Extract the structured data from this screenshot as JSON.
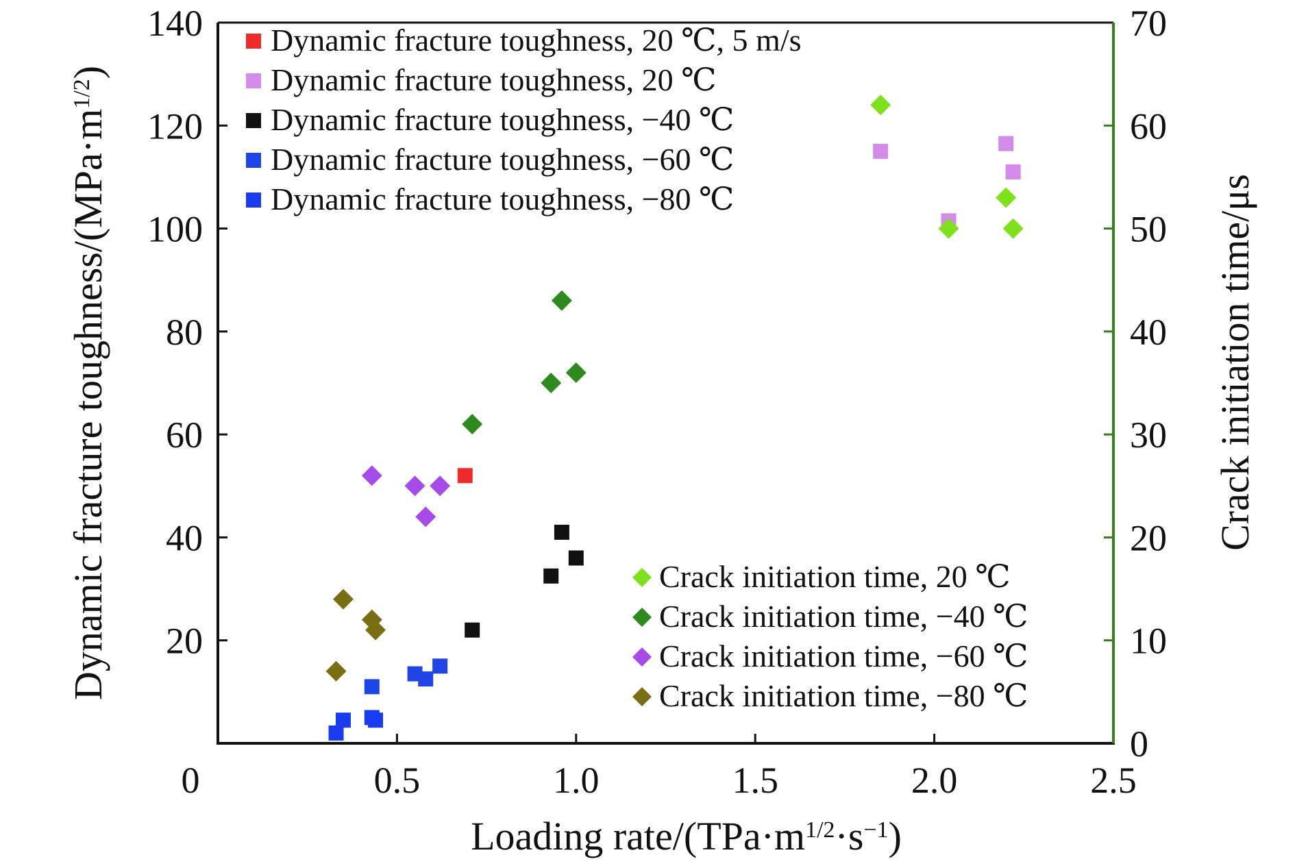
{
  "chart_data": {
    "type": "scatter",
    "xlabel": "Loading rate/(TPa·m1/2·s−1)",
    "ylabel_left": "Dynamic fracture toughness/(MPa·m1/2)",
    "ylabel_right": "Crack initiation time/μs",
    "xlim": [
      0,
      2.5
    ],
    "ylim_left": [
      0,
      140
    ],
    "ylim_right": [
      0,
      70
    ],
    "x_ticks": [
      0,
      0.5,
      1.0,
      1.5,
      2.0,
      2.5
    ],
    "x_tick_labels": [
      "0",
      "0.5",
      "1.0",
      "1.5",
      "2.0",
      "2.5"
    ],
    "y_left_ticks": [
      20,
      40,
      60,
      80,
      100,
      120,
      140
    ],
    "y_right_ticks": [
      0,
      10,
      20,
      30,
      40,
      50,
      60,
      70
    ],
    "grid": false,
    "right_axis_color": "#3a7d1e",
    "legends": [
      {
        "placement": "top-left",
        "entries": [
          "Dynamic fracture toughness, 20 ℃, 5 m/s",
          "Dynamic fracture toughness, 20 ℃",
          "Dynamic fracture toughness, −40 ℃",
          "Dynamic fracture toughness, −60 ℃",
          "Dynamic fracture toughness, −80 ℃"
        ]
      },
      {
        "placement": "bottom-right",
        "entries": [
          "Crack initiation time, 20 ℃",
          "Crack initiation time, −40 ℃",
          "Crack initiation time, −60 ℃",
          "Crack initiation time, −80 ℃"
        ]
      }
    ],
    "series": [
      {
        "name": "Dynamic fracture toughness, 20 ℃, 5 m/s",
        "axis": "left",
        "marker": "square",
        "color": "#ee2a2a",
        "points": [
          [
            0.69,
            52
          ]
        ]
      },
      {
        "name": "Dynamic fracture toughness, 20 ℃",
        "axis": "left",
        "marker": "square",
        "color": "#d48ae8",
        "points": [
          [
            1.85,
            115
          ],
          [
            2.04,
            101.5
          ],
          [
            2.2,
            116.5
          ],
          [
            2.22,
            111
          ]
        ]
      },
      {
        "name": "Dynamic fracture toughness, −40 ℃",
        "axis": "left",
        "marker": "square",
        "color": "#111111",
        "points": [
          [
            0.71,
            22
          ],
          [
            0.93,
            32.5
          ],
          [
            0.96,
            41
          ],
          [
            1.0,
            36
          ]
        ]
      },
      {
        "name": "Dynamic fracture toughness, −60 ℃",
        "axis": "left",
        "marker": "square",
        "color": "#1f45e6",
        "points": [
          [
            0.43,
            11
          ],
          [
            0.55,
            13.5
          ],
          [
            0.58,
            12.5
          ],
          [
            0.62,
            15
          ]
        ]
      },
      {
        "name": "Dynamic fracture toughness, −80 ℃",
        "axis": "left",
        "marker": "square",
        "color": "#1a3cf0",
        "points": [
          [
            0.33,
            2
          ],
          [
            0.35,
            4.5
          ],
          [
            0.43,
            5
          ],
          [
            0.44,
            4.5
          ]
        ]
      },
      {
        "name": "Crack initiation time, 20 ℃",
        "axis": "right",
        "marker": "diamond",
        "color": "#7fe01c",
        "points": [
          [
            1.85,
            62
          ],
          [
            2.04,
            50
          ],
          [
            2.2,
            53
          ],
          [
            2.22,
            50
          ]
        ]
      },
      {
        "name": "Crack initiation time, −40 ℃",
        "axis": "right",
        "marker": "diamond",
        "color": "#2e8a1e",
        "points": [
          [
            0.71,
            31
          ],
          [
            0.93,
            35
          ],
          [
            0.96,
            43
          ],
          [
            1.0,
            36
          ]
        ]
      },
      {
        "name": "Crack initiation time, −60 ℃",
        "axis": "right",
        "marker": "diamond",
        "color": "#a64ae8",
        "points": [
          [
            0.43,
            26
          ],
          [
            0.55,
            25
          ],
          [
            0.58,
            22
          ],
          [
            0.62,
            25
          ]
        ]
      },
      {
        "name": "Crack initiation time, −80 ℃",
        "axis": "right",
        "marker": "diamond",
        "color": "#7a6e14",
        "points": [
          [
            0.33,
            7
          ],
          [
            0.35,
            14
          ],
          [
            0.43,
            12
          ],
          [
            0.44,
            11
          ]
        ]
      }
    ]
  }
}
